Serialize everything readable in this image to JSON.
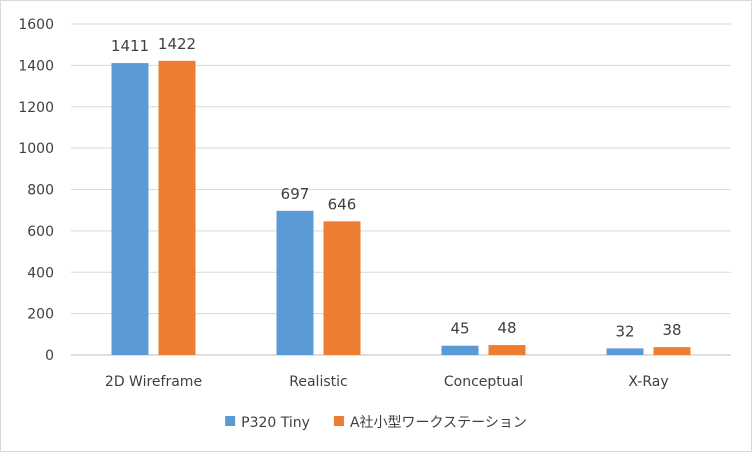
{
  "chart_data": {
    "type": "bar",
    "title": "",
    "xlabel": "",
    "ylabel": "",
    "categories": [
      "2D Wireframe",
      "Realistic",
      "Conceptual",
      "X-Ray"
    ],
    "series": [
      {
        "name": "P320 Tiny",
        "values": [
          1411,
          697,
          45,
          32
        ],
        "color": "#5B9BD5"
      },
      {
        "name": "A社小型ワークステーション",
        "values": [
          1422,
          646,
          48,
          38
        ],
        "color": "#ED7D31"
      }
    ],
    "ylim": [
      0,
      1600
    ],
    "yticks": [
      0,
      200,
      400,
      600,
      800,
      1000,
      1200,
      1400,
      1600
    ],
    "grid": true,
    "legend": "bottom",
    "data_labels": true
  }
}
